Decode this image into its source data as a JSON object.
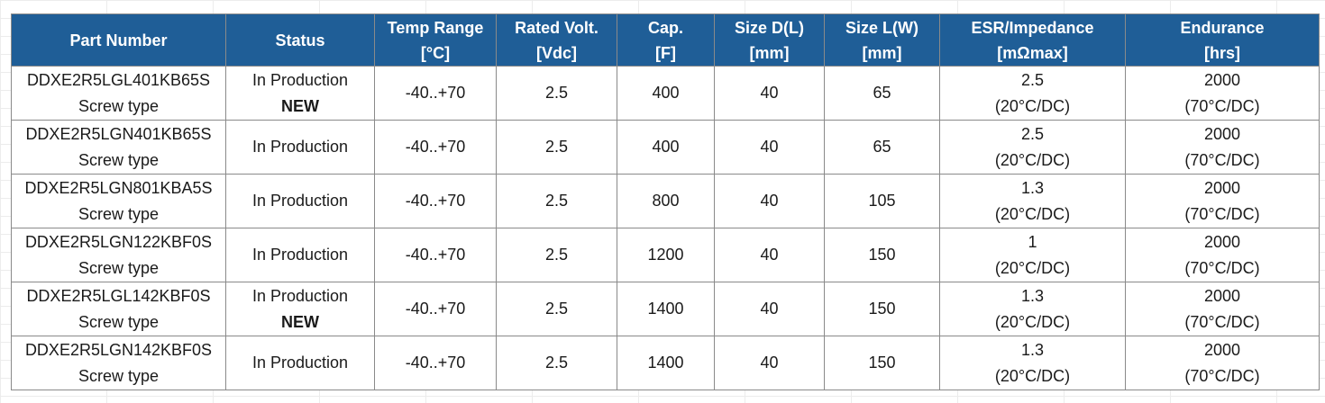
{
  "colors": {
    "header_bg": "#1f5e97",
    "header_text": "#ffffff",
    "grid_border": "#8a8a8a"
  },
  "headers": [
    {
      "line1": "Part Number",
      "line2": ""
    },
    {
      "line1": "Status",
      "line2": ""
    },
    {
      "line1": "Temp Range",
      "line2": "[°C]"
    },
    {
      "line1": "Rated Volt.",
      "line2": "[Vdc]"
    },
    {
      "line1": "Cap.",
      "line2": "[F]"
    },
    {
      "line1": "Size D(L)",
      "line2": "[mm]"
    },
    {
      "line1": "Size L(W)",
      "line2": "[mm]"
    },
    {
      "line1": "ESR/Impedance",
      "line2": "[mΩmax]"
    },
    {
      "line1": "Endurance",
      "line2": "[hrs]"
    }
  ],
  "rows": [
    {
      "part": "DDXE2R5LGL401KB65S",
      "type": "Screw type",
      "status": "In Production",
      "badge": "NEW",
      "temp": "-40..+70",
      "volt": "2.5",
      "cap": "400",
      "size_d": "40",
      "size_l": "65",
      "esr": "2.5",
      "esr_cond": "(20°C/DC)",
      "endurance": "2000",
      "endurance_cond": "(70°C/DC)"
    },
    {
      "part": "DDXE2R5LGN401KB65S",
      "type": "Screw type",
      "status": "In Production",
      "badge": "",
      "temp": "-40..+70",
      "volt": "2.5",
      "cap": "400",
      "size_d": "40",
      "size_l": "65",
      "esr": "2.5",
      "esr_cond": "(20°C/DC)",
      "endurance": "2000",
      "endurance_cond": "(70°C/DC)"
    },
    {
      "part": "DDXE2R5LGN801KBA5S",
      "type": "Screw type",
      "status": "In Production",
      "badge": "",
      "temp": "-40..+70",
      "volt": "2.5",
      "cap": "800",
      "size_d": "40",
      "size_l": "105",
      "esr": "1.3",
      "esr_cond": "(20°C/DC)",
      "endurance": "2000",
      "endurance_cond": "(70°C/DC)"
    },
    {
      "part": "DDXE2R5LGN122KBF0S",
      "type": "Screw type",
      "status": "In Production",
      "badge": "",
      "temp": "-40..+70",
      "volt": "2.5",
      "cap": "1200",
      "size_d": "40",
      "size_l": "150",
      "esr": "1",
      "esr_cond": "(20°C/DC)",
      "endurance": "2000",
      "endurance_cond": "(70°C/DC)"
    },
    {
      "part": "DDXE2R5LGL142KBF0S",
      "type": "Screw type",
      "status": "In Production",
      "badge": "NEW",
      "temp": "-40..+70",
      "volt": "2.5",
      "cap": "1400",
      "size_d": "40",
      "size_l": "150",
      "esr": "1.3",
      "esr_cond": "(20°C/DC)",
      "endurance": "2000",
      "endurance_cond": "(70°C/DC)"
    },
    {
      "part": "DDXE2R5LGN142KBF0S",
      "type": "Screw type",
      "status": "In Production",
      "badge": "",
      "temp": "-40..+70",
      "volt": "2.5",
      "cap": "1400",
      "size_d": "40",
      "size_l": "150",
      "esr": "1.3",
      "esr_cond": "(20°C/DC)",
      "endurance": "2000",
      "endurance_cond": "(70°C/DC)"
    }
  ]
}
